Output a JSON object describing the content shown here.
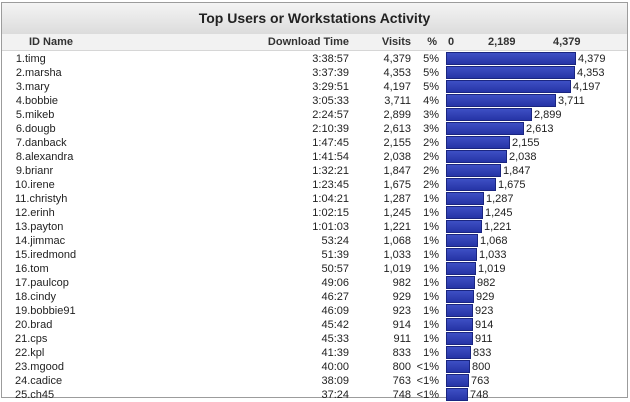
{
  "title": "Top Users or Workstations Activity",
  "headers": {
    "id_name": "ID Name",
    "download_time": "Download Time",
    "visits": "Visits",
    "pct": "%",
    "axis_ticks": [
      "0",
      "2,189",
      "4,379"
    ]
  },
  "axis_max": 4379,
  "colors": {
    "bar": "#2634a6",
    "title_bg": "#e2e2e2"
  },
  "rows": [
    {
      "rank": "1.",
      "name": "timg",
      "download": "3:38:57",
      "visits": "4,379",
      "visits_n": 4379,
      "pct": "5%"
    },
    {
      "rank": "2.",
      "name": "marsha",
      "download": "3:37:39",
      "visits": "4,353",
      "visits_n": 4353,
      "pct": "5%"
    },
    {
      "rank": "3.",
      "name": "mary",
      "download": "3:29:51",
      "visits": "4,197",
      "visits_n": 4197,
      "pct": "5%"
    },
    {
      "rank": "4.",
      "name": "bobbie",
      "download": "3:05:33",
      "visits": "3,711",
      "visits_n": 3711,
      "pct": "4%"
    },
    {
      "rank": "5.",
      "name": "mikeb",
      "download": "2:24:57",
      "visits": "2,899",
      "visits_n": 2899,
      "pct": "3%"
    },
    {
      "rank": "6.",
      "name": "dougb",
      "download": "2:10:39",
      "visits": "2,613",
      "visits_n": 2613,
      "pct": "3%"
    },
    {
      "rank": "7.",
      "name": "danback",
      "download": "1:47:45",
      "visits": "2,155",
      "visits_n": 2155,
      "pct": "2%"
    },
    {
      "rank": "8.",
      "name": "alexandra",
      "download": "1:41:54",
      "visits": "2,038",
      "visits_n": 2038,
      "pct": "2%"
    },
    {
      "rank": "9.",
      "name": "brianr",
      "download": "1:32:21",
      "visits": "1,847",
      "visits_n": 1847,
      "pct": "2%"
    },
    {
      "rank": "10.",
      "name": "irene",
      "download": "1:23:45",
      "visits": "1,675",
      "visits_n": 1675,
      "pct": "2%"
    },
    {
      "rank": "11.",
      "name": "christyh",
      "download": "1:04:21",
      "visits": "1,287",
      "visits_n": 1287,
      "pct": "1%"
    },
    {
      "rank": "12.",
      "name": "erinh",
      "download": "1:02:15",
      "visits": "1,245",
      "visits_n": 1245,
      "pct": "1%"
    },
    {
      "rank": "13.",
      "name": "payton",
      "download": "1:01:03",
      "visits": "1,221",
      "visits_n": 1221,
      "pct": "1%"
    },
    {
      "rank": "14.",
      "name": "jimmac",
      "download": "53:24",
      "visits": "1,068",
      "visits_n": 1068,
      "pct": "1%"
    },
    {
      "rank": "15.",
      "name": "iredmond",
      "download": "51:39",
      "visits": "1,033",
      "visits_n": 1033,
      "pct": "1%"
    },
    {
      "rank": "16.",
      "name": "tom",
      "download": "50:57",
      "visits": "1,019",
      "visits_n": 1019,
      "pct": "1%"
    },
    {
      "rank": "17.",
      "name": "paulcop",
      "download": "49:06",
      "visits": "982",
      "visits_n": 982,
      "pct": "1%"
    },
    {
      "rank": "18.",
      "name": "cindy",
      "download": "46:27",
      "visits": "929",
      "visits_n": 929,
      "pct": "1%"
    },
    {
      "rank": "19.",
      "name": "bobbie91",
      "download": "46:09",
      "visits": "923",
      "visits_n": 923,
      "pct": "1%"
    },
    {
      "rank": "20.",
      "name": "brad",
      "download": "45:42",
      "visits": "914",
      "visits_n": 914,
      "pct": "1%"
    },
    {
      "rank": "21.",
      "name": "cps",
      "download": "45:33",
      "visits": "911",
      "visits_n": 911,
      "pct": "1%"
    },
    {
      "rank": "22.",
      "name": "kpl",
      "download": "41:39",
      "visits": "833",
      "visits_n": 833,
      "pct": "1%"
    },
    {
      "rank": "23.",
      "name": "mgood",
      "download": "40:00",
      "visits": "800",
      "visits_n": 800,
      "pct": "<1%"
    },
    {
      "rank": "24.",
      "name": "cadice",
      "download": "38:09",
      "visits": "763",
      "visits_n": 763,
      "pct": "<1%"
    },
    {
      "rank": "25.",
      "name": "ch45",
      "download": "37:24",
      "visits": "748",
      "visits_n": 748,
      "pct": "<1%"
    }
  ]
}
